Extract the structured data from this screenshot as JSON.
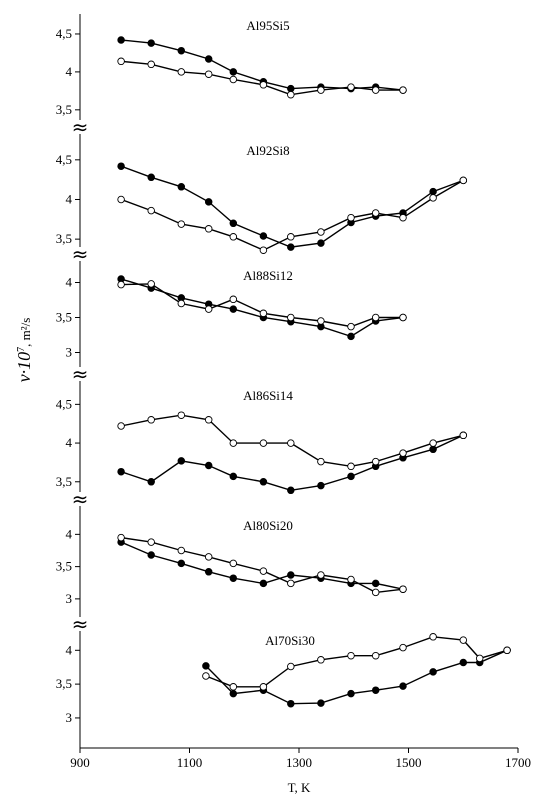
{
  "chart_data": {
    "type": "line",
    "xlabel": "T, K",
    "ylabel_prefix": "ν·10",
    "ylabel_exp": "7",
    "ylabel_suffix": ", m²/s",
    "axis_break_symbol": "≈",
    "xlim": [
      900,
      1700
    ],
    "xticks": [
      900,
      1100,
      1300,
      1500,
      1700
    ],
    "xtick_labels": [
      "900",
      "1100",
      "1300",
      "1500",
      "1700"
    ],
    "colors": {
      "filled": "#000000",
      "open_fill": "#ffffff",
      "line": "#000000"
    },
    "panels": [
      {
        "title": "Al95Si5",
        "ylim": [
          3.3,
          4.75
        ],
        "yticks": [
          3.5,
          4,
          4.5
        ],
        "ytick_labels": [
          "3,5",
          "4",
          "4,5"
        ],
        "series": [
          {
            "marker": "filled",
            "x": [
              975,
              1030,
              1085,
              1135,
              1180,
              1235,
              1285,
              1340,
              1395,
              1440,
              1490
            ],
            "y": [
              4.42,
              4.38,
              4.28,
              4.17,
              4.0,
              3.87,
              3.78,
              3.8,
              3.78,
              3.8,
              3.76
            ]
          },
          {
            "marker": "open",
            "x": [
              975,
              1030,
              1085,
              1135,
              1180,
              1235,
              1285,
              1340,
              1395,
              1440,
              1490
            ],
            "y": [
              4.14,
              4.1,
              4.0,
              3.97,
              3.9,
              3.83,
              3.7,
              3.76,
              3.8,
              3.76,
              3.76
            ]
          }
        ]
      },
      {
        "title": "Al92Si8",
        "ylim": [
          3.3,
          4.75
        ],
        "yticks": [
          3.5,
          4,
          4.5
        ],
        "ytick_labels": [
          "3,5",
          "4",
          "4,5"
        ],
        "series": [
          {
            "marker": "filled",
            "x": [
              975,
              1030,
              1085,
              1135,
              1180,
              1235,
              1285,
              1340,
              1395,
              1440,
              1490,
              1545,
              1600
            ],
            "y": [
              4.42,
              4.28,
              4.16,
              3.97,
              3.7,
              3.54,
              3.4,
              3.45,
              3.71,
              3.79,
              3.83,
              4.1,
              4.24
            ]
          },
          {
            "marker": "open",
            "x": [
              975,
              1030,
              1085,
              1135,
              1180,
              1235,
              1285,
              1340,
              1395,
              1440,
              1490,
              1545,
              1600
            ],
            "y": [
              4.0,
              3.86,
              3.69,
              3.63,
              3.53,
              3.36,
              3.53,
              3.59,
              3.77,
              3.83,
              3.77,
              4.02,
              4.24
            ]
          }
        ]
      },
      {
        "title": "Al88Si12",
        "ylim": [
          2.75,
          4.25
        ],
        "yticks": [
          3,
          3.5,
          4
        ],
        "ytick_labels": [
          "3",
          "3,5",
          "4"
        ],
        "series": [
          {
            "marker": "filled",
            "x": [
              975,
              1030,
              1085,
              1135,
              1180,
              1235,
              1285,
              1340,
              1395,
              1440,
              1490
            ],
            "y": [
              4.05,
              3.92,
              3.78,
              3.69,
              3.62,
              3.5,
              3.44,
              3.37,
              3.23,
              3.45,
              3.5
            ]
          },
          {
            "marker": "open",
            "x": [
              975,
              1030,
              1085,
              1135,
              1180,
              1235,
              1285,
              1340,
              1395,
              1440,
              1490
            ],
            "y": [
              3.97,
              3.98,
              3.7,
              3.62,
              3.76,
              3.56,
              3.5,
              3.45,
              3.37,
              3.5,
              3.5
            ]
          }
        ]
      },
      {
        "title": "Al86Si14",
        "ylim": [
          3.2,
          4.75
        ],
        "yticks": [
          3.5,
          4,
          4.5
        ],
        "ytick_labels": [
          "3,5",
          "4",
          "4,5"
        ],
        "series": [
          {
            "marker": "filled",
            "x": [
              975,
              1030,
              1085,
              1135,
              1180,
              1235,
              1285,
              1340,
              1395,
              1440,
              1490,
              1545,
              1600
            ],
            "y": [
              3.63,
              3.5,
              3.77,
              3.71,
              3.57,
              3.5,
              3.39,
              3.45,
              3.57,
              3.7,
              3.81,
              3.92,
              4.1
            ]
          },
          {
            "marker": "open",
            "x": [
              975,
              1030,
              1085,
              1135,
              1180,
              1235,
              1285,
              1340,
              1395,
              1440,
              1490,
              1545,
              1600
            ],
            "y": [
              4.22,
              4.3,
              4.36,
              4.3,
              4.0,
              4.0,
              4.0,
              3.76,
              3.7,
              3.76,
              3.87,
              4.0,
              4.1
            ]
          }
        ]
      },
      {
        "title": "Al80Si20",
        "ylim": [
          2.75,
          4.3
        ],
        "yticks": [
          3,
          3.5,
          4
        ],
        "ytick_labels": [
          "3",
          "3,5",
          "4"
        ],
        "series": [
          {
            "marker": "filled",
            "x": [
              975,
              1030,
              1085,
              1135,
              1180,
              1235,
              1285,
              1340,
              1395,
              1440,
              1490
            ],
            "y": [
              3.88,
              3.68,
              3.55,
              3.42,
              3.32,
              3.24,
              3.37,
              3.32,
              3.24,
              3.24,
              3.15
            ]
          },
          {
            "marker": "open",
            "x": [
              975,
              1030,
              1085,
              1135,
              1180,
              1235,
              1285,
              1340,
              1395,
              1440,
              1490
            ],
            "y": [
              3.95,
              3.88,
              3.75,
              3.65,
              3.55,
              3.43,
              3.24,
              3.37,
              3.3,
              3.1,
              3.15
            ]
          }
        ]
      },
      {
        "title": "Al70Si30",
        "ylim": [
          2.6,
          4.3
        ],
        "yticks": [
          3,
          3.5,
          4
        ],
        "ytick_labels": [
          "3",
          "3,5",
          "4"
        ],
        "series": [
          {
            "marker": "filled",
            "x": [
              1130,
              1180,
              1235,
              1285,
              1340,
              1395,
              1440,
              1490,
              1545,
              1600,
              1630,
              1680
            ],
            "y": [
              3.77,
              3.36,
              3.41,
              3.21,
              3.22,
              3.36,
              3.41,
              3.47,
              3.68,
              3.82,
              3.82,
              4.0
            ]
          },
          {
            "marker": "open",
            "x": [
              1130,
              1180,
              1235,
              1285,
              1340,
              1395,
              1440,
              1490,
              1545,
              1600,
              1630,
              1680
            ],
            "y": [
              3.62,
              3.46,
              3.46,
              3.76,
              3.86,
              3.92,
              3.92,
              4.04,
              4.2,
              4.15,
              3.88,
              4.0
            ]
          }
        ]
      }
    ]
  }
}
